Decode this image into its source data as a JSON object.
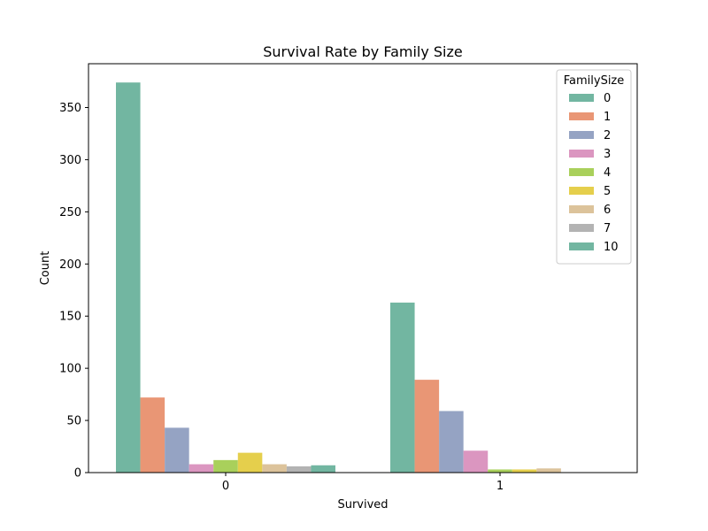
{
  "chart_data": {
    "type": "bar",
    "title": "Survival Rate by Family Size",
    "xlabel": "Survived",
    "ylabel": "Count",
    "categories": [
      "0",
      "1"
    ],
    "ylim": [
      0,
      392
    ],
    "yticks": [
      0,
      50,
      100,
      150,
      200,
      250,
      300,
      350
    ],
    "legend": {
      "title": "FamilySize",
      "placement": "top-right"
    },
    "series": [
      {
        "name": "0",
        "color": "#72b6a1",
        "values": [
          374,
          163
        ]
      },
      {
        "name": "1",
        "color": "#e99675",
        "values": [
          72,
          89
        ]
      },
      {
        "name": "2",
        "color": "#95a3c3",
        "values": [
          43,
          59
        ]
      },
      {
        "name": "3",
        "color": "#db96c0",
        "values": [
          8,
          21
        ]
      },
      {
        "name": "4",
        "color": "#a9d05b",
        "values": [
          12,
          3
        ]
      },
      {
        "name": "5",
        "color": "#e5cf4c",
        "values": [
          19,
          3
        ]
      },
      {
        "name": "6",
        "color": "#dcc39b",
        "values": [
          8,
          4
        ]
      },
      {
        "name": "7",
        "color": "#b3b3b3",
        "values": [
          6,
          0
        ]
      },
      {
        "name": "10",
        "color": "#72b6a1",
        "values": [
          7,
          0
        ]
      }
    ]
  }
}
